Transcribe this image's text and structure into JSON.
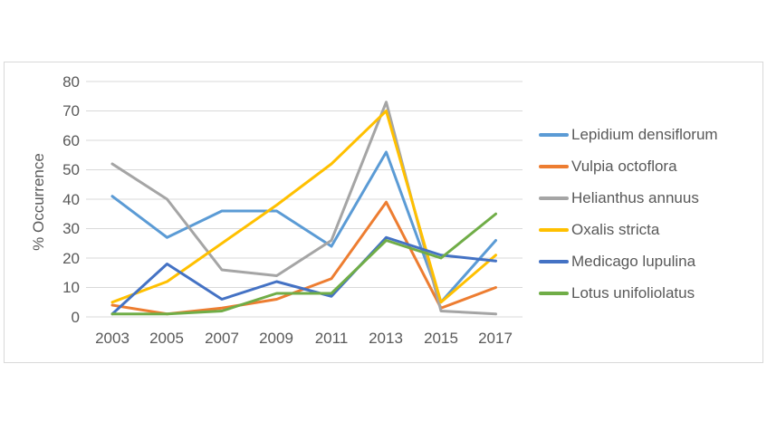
{
  "chart_data": {
    "type": "line",
    "x": [
      "2003",
      "2005",
      "2007",
      "2009",
      "2011",
      "2013",
      "2015",
      "2017"
    ],
    "yticks": [
      "0",
      "10",
      "20",
      "30",
      "40",
      "50",
      "60",
      "70",
      "80"
    ],
    "ylim": [
      0,
      80
    ],
    "ytick_step": 10,
    "xlabel": "",
    "ylabel": "% Occurrence",
    "title": "",
    "grid": "horizontal",
    "legend_position": "right",
    "series": [
      {
        "name": "Lepidium densiflorum",
        "color": "#5B9BD5",
        "values": [
          41,
          27,
          36,
          36,
          24,
          56,
          5,
          26
        ]
      },
      {
        "name": "Vulpia octoflora",
        "color": "#ED7D31",
        "values": [
          4,
          1,
          3,
          6,
          13,
          39,
          3,
          10
        ]
      },
      {
        "name": "Helianthus annuus",
        "color": "#A5A5A5",
        "values": [
          52,
          40,
          16,
          14,
          26,
          73,
          2,
          1
        ]
      },
      {
        "name": "Oxalis stricta",
        "color": "#FFC000",
        "values": [
          5,
          12,
          25,
          38,
          52,
          70,
          5,
          21
        ]
      },
      {
        "name": "Medicago lupulina",
        "color": "#4472C4",
        "values": [
          1,
          18,
          6,
          12,
          7,
          27,
          21,
          19
        ]
      },
      {
        "name": "Lotus unifoliolatus",
        "color": "#70AD47",
        "values": [
          1,
          1,
          2,
          8,
          8,
          26,
          20,
          35
        ]
      }
    ],
    "colors": {
      "gridline": "#D9D9D9",
      "frame_border": "#D9D9D9",
      "axis_text": "#595959"
    }
  }
}
